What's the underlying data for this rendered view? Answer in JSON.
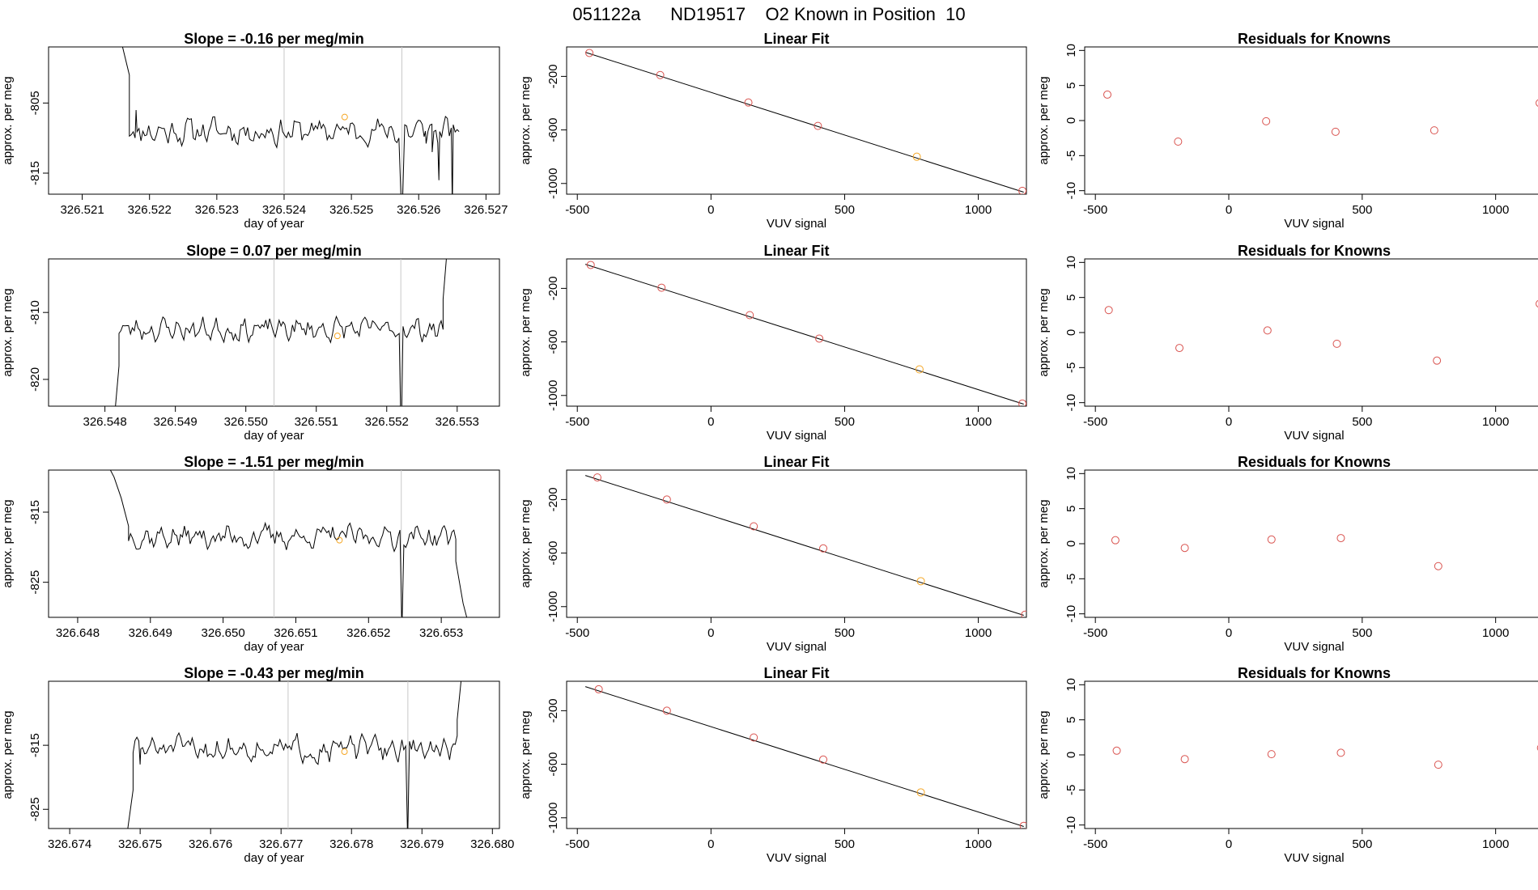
{
  "figure_title": "051122a      ND19517    O2 Known in Position  10",
  "chart_data": [
    {
      "type": "line",
      "title": "Slope =  -0.16  per meg/min",
      "xlabel": "day of year",
      "ylabel": "approx. per meg",
      "xlim": [
        326.5205,
        326.5272
      ],
      "ylim": [
        -818,
        -797
      ],
      "xticks": [
        326.521,
        326.522,
        326.523,
        326.524,
        326.525,
        326.526,
        326.527
      ],
      "xtick_labels": [
        "326.521",
        "326.522",
        "326.523",
        "326.524",
        "326.525",
        "326.526",
        "326.527"
      ],
      "yticks": [
        -805,
        -815
      ],
      "ytick_labels": [
        "-805",
        "-815"
      ],
      "vlines": [
        326.524,
        326.52575
      ],
      "x_start": 326.5217,
      "x_end": 326.5266,
      "base": -809,
      "amp": 2.5,
      "seed": 11,
      "head": [
        [
          326.5214,
          -790
        ],
        [
          326.5216,
          -797
        ],
        [
          326.5217,
          -801
        ],
        [
          326.5218,
          -806
        ]
      ],
      "tail": [
        [
          326.5261,
          -809
        ],
        [
          326.5262,
          -812
        ],
        [
          326.5263,
          -816
        ],
        [
          326.5265,
          -820
        ]
      ],
      "dips": [
        [
          326.52575,
          -818
        ]
      ],
      "marker": {
        "x": 326.5249,
        "y": -807,
        "color": "#f5a623"
      }
    },
    {
      "type": "scatter",
      "title": "Linear Fit",
      "xlabel": "VUV signal",
      "ylabel": "approx. per meg",
      "xlim": [
        -540,
        1180
      ],
      "ylim": [
        -1080,
        20
      ],
      "xticks": [
        -500,
        0,
        500,
        1000
      ],
      "xtick_labels": [
        "-500",
        "0",
        "500",
        "1000"
      ],
      "yticks": [
        -200,
        -600,
        -1000
      ],
      "ytick_labels": [
        "-200",
        "-600",
        "-1000"
      ],
      "fit_line": [
        [
          -470,
          -20
        ],
        [
          1170,
          -1065
        ]
      ],
      "points": [
        [
          -455,
          -25
        ],
        [
          -190,
          -190
        ],
        [
          140,
          -395
        ],
        [
          400,
          -570
        ],
        [
          770,
          -800
        ],
        [
          1165,
          -1055
        ]
      ],
      "point_colors": [
        "#d9534f",
        "#d9534f",
        "#d9534f",
        "#d9534f",
        "#f5a623",
        "#d9534f"
      ]
    },
    {
      "type": "scatter",
      "title": "Residuals for Knowns",
      "xlabel": "VUV signal",
      "ylabel": "approx. per meg",
      "xlim": [
        -540,
        1180
      ],
      "ylim": [
        -10.5,
        10.5
      ],
      "xticks": [
        -500,
        0,
        500,
        1000
      ],
      "xtick_labels": [
        "-500",
        "0",
        "500",
        "1000"
      ],
      "yticks": [
        10,
        5,
        0,
        -5,
        -10
      ],
      "ytick_labels": [
        "10",
        "5",
        "0",
        "-5",
        "-10"
      ],
      "points": [
        [
          -455,
          3.7
        ],
        [
          -190,
          -3
        ],
        [
          140,
          -0.1
        ],
        [
          400,
          -1.6
        ],
        [
          770,
          -1.4
        ],
        [
          1165,
          2.5
        ]
      ],
      "point_colors": [
        "#d9534f",
        "#d9534f",
        "#d9534f",
        "#d9534f",
        "#d9534f",
        "#d9534f"
      ]
    },
    {
      "type": "line",
      "title": "Slope =  0.07  per meg/min",
      "xlabel": "day of year",
      "ylabel": "approx. per meg",
      "xlim": [
        326.5472,
        326.5536
      ],
      "ylim": [
        -824,
        -802
      ],
      "xticks": [
        326.548,
        326.549,
        326.55,
        326.551,
        326.552,
        326.553
      ],
      "xtick_labels": [
        "326.548",
        "326.549",
        "326.550",
        "326.551",
        "326.552",
        "326.553"
      ],
      "yticks": [
        -810,
        -820
      ],
      "ytick_labels": [
        "-810",
        "-820"
      ],
      "vlines": [
        326.5504,
        326.5522
      ],
      "x_start": 326.5482,
      "x_end": 326.5528,
      "base": -812.5,
      "amp": 2.2,
      "seed": 23,
      "head": [
        [
          326.5481,
          -830
        ],
        [
          326.5482,
          -818
        ]
      ],
      "tail": [
        [
          326.5528,
          -808
        ],
        [
          326.5529,
          -795
        ]
      ],
      "dips": [
        [
          326.5522,
          -830
        ]
      ],
      "marker": {
        "x": 326.5513,
        "y": -813.5,
        "color": "#f5a623"
      }
    },
    {
      "type": "scatter",
      "title": "Linear Fit",
      "xlabel": "VUV signal",
      "ylabel": "approx. per meg",
      "xlim": [
        -540,
        1180
      ],
      "ylim": [
        -1080,
        20
      ],
      "xticks": [
        -500,
        0,
        500,
        1000
      ],
      "xtick_labels": [
        "-500",
        "0",
        "500",
        "1000"
      ],
      "yticks": [
        -200,
        -600,
        -1000
      ],
      "ytick_labels": [
        "-200",
        "-600",
        "-1000"
      ],
      "fit_line": [
        [
          -470,
          -20
        ],
        [
          1170,
          -1065
        ]
      ],
      "points": [
        [
          -450,
          -25
        ],
        [
          -185,
          -195
        ],
        [
          145,
          -400
        ],
        [
          405,
          -575
        ],
        [
          780,
          -805
        ],
        [
          1165,
          -1060
        ]
      ],
      "point_colors": [
        "#d9534f",
        "#d9534f",
        "#d9534f",
        "#d9534f",
        "#f5a623",
        "#d9534f"
      ]
    },
    {
      "type": "scatter",
      "title": "Residuals for Knowns",
      "xlabel": "VUV signal",
      "ylabel": "approx. per meg",
      "xlim": [
        -540,
        1180
      ],
      "ylim": [
        -10.5,
        10.5
      ],
      "xticks": [
        -500,
        0,
        500,
        1000
      ],
      "xtick_labels": [
        "-500",
        "0",
        "500",
        "1000"
      ],
      "yticks": [
        10,
        5,
        0,
        -5,
        -10
      ],
      "ytick_labels": [
        "10",
        "5",
        "0",
        "-5",
        "-10"
      ],
      "points": [
        [
          -450,
          3.2
        ],
        [
          -185,
          -2.2
        ],
        [
          145,
          0.3
        ],
        [
          405,
          -1.6
        ],
        [
          780,
          -4
        ],
        [
          1165,
          4.1
        ]
      ],
      "point_colors": [
        "#d9534f",
        "#d9534f",
        "#d9534f",
        "#d9534f",
        "#d9534f",
        "#d9534f"
      ]
    },
    {
      "type": "line",
      "title": "Slope =  -1.51  per meg/min",
      "xlabel": "day of year",
      "ylabel": "approx. per meg",
      "xlim": [
        326.6476,
        326.6538
      ],
      "ylim": [
        -830,
        -809
      ],
      "xticks": [
        326.648,
        326.649,
        326.65,
        326.651,
        326.652,
        326.653
      ],
      "xtick_labels": [
        "326.648",
        "326.649",
        "326.650",
        "326.651",
        "326.652",
        "326.653"
      ],
      "yticks": [
        -815,
        -825
      ],
      "ytick_labels": [
        "-815",
        "-825"
      ],
      "vlines": [
        326.6507,
        326.65245
      ],
      "x_start": 326.6487,
      "x_end": 326.6532,
      "base": -818.5,
      "amp": 2.2,
      "seed": 37,
      "head": [
        [
          326.6484,
          -808
        ],
        [
          326.6485,
          -810
        ],
        [
          326.6486,
          -813
        ],
        [
          326.6487,
          -817
        ]
      ],
      "tail": [
        [
          326.6532,
          -822
        ],
        [
          326.6533,
          -828
        ],
        [
          326.6534,
          -832
        ]
      ],
      "dips": [
        [
          326.65245,
          -832
        ]
      ],
      "marker": {
        "x": 326.6516,
        "y": -819,
        "color": "#f5a623"
      }
    },
    {
      "type": "scatter",
      "title": "Linear Fit",
      "xlabel": "VUV signal",
      "ylabel": "approx. per meg",
      "xlim": [
        -540,
        1180
      ],
      "ylim": [
        -1080,
        20
      ],
      "xticks": [
        -500,
        0,
        500,
        1000
      ],
      "xtick_labels": [
        "-500",
        "0",
        "500",
        "1000"
      ],
      "yticks": [
        -200,
        -600,
        -1000
      ],
      "ytick_labels": [
        "-200",
        "-600",
        "-1000"
      ],
      "fit_line": [
        [
          -470,
          -20
        ],
        [
          1170,
          -1065
        ]
      ],
      "points": [
        [
          -425,
          -35
        ],
        [
          -165,
          -200
        ],
        [
          160,
          -400
        ],
        [
          420,
          -565
        ],
        [
          785,
          -810
        ],
        [
          1175,
          -1060
        ]
      ],
      "point_colors": [
        "#d9534f",
        "#d9534f",
        "#d9534f",
        "#d9534f",
        "#f5a623",
        "#d9534f"
      ]
    },
    {
      "type": "scatter",
      "title": "Residuals for Knowns",
      "xlabel": "VUV signal",
      "ylabel": "approx. per meg",
      "xlim": [
        -540,
        1180
      ],
      "ylim": [
        -10.5,
        10.5
      ],
      "xticks": [
        -500,
        0,
        500,
        1000
      ],
      "xtick_labels": [
        "-500",
        "0",
        "500",
        "1000"
      ],
      "yticks": [
        10,
        5,
        0,
        -5,
        -10
      ],
      "ytick_labels": [
        "10",
        "5",
        "0",
        "-5",
        "-10"
      ],
      "points": [
        [
          -425,
          0.5
        ],
        [
          -165,
          -0.6
        ],
        [
          160,
          0.6
        ],
        [
          420,
          0.8
        ],
        [
          785,
          -3.2
        ],
        [
          1175,
          1.9
        ]
      ],
      "point_colors": [
        "#d9534f",
        "#d9534f",
        "#d9534f",
        "#d9534f",
        "#d9534f",
        "#d9534f"
      ]
    },
    {
      "type": "line",
      "title": "Slope =  -0.43  per meg/min",
      "xlabel": "day of year",
      "ylabel": "approx. per meg",
      "xlim": [
        326.6737,
        326.6801
      ],
      "ylim": [
        -828,
        -805
      ],
      "xticks": [
        326.674,
        326.675,
        326.676,
        326.677,
        326.678,
        326.679,
        326.68
      ],
      "xtick_labels": [
        "326.674",
        "326.675",
        "326.676",
        "326.677",
        "326.678",
        "326.679",
        "326.680"
      ],
      "yticks": [
        -815,
        -825
      ],
      "ytick_labels": [
        "-815",
        "-825"
      ],
      "vlines": [
        326.6771,
        326.6788
      ],
      "x_start": 326.6749,
      "x_end": 326.6795,
      "base": -815.5,
      "amp": 2.5,
      "seed": 51,
      "head": [
        [
          326.6748,
          -830
        ],
        [
          326.6749,
          -822
        ],
        [
          326.675,
          -818
        ]
      ],
      "tail": [
        [
          326.6795,
          -811
        ],
        [
          326.6796,
          -800
        ]
      ],
      "dips": [
        [
          326.6788,
          -830
        ]
      ],
      "marker": {
        "x": 326.6779,
        "y": -816,
        "color": "#f5a623"
      }
    },
    {
      "type": "scatter",
      "title": "Linear Fit",
      "xlabel": "VUV signal",
      "ylabel": "approx. per meg",
      "xlim": [
        -540,
        1180
      ],
      "ylim": [
        -1080,
        20
      ],
      "xticks": [
        -500,
        0,
        500,
        1000
      ],
      "xtick_labels": [
        "-500",
        "0",
        "500",
        "1000"
      ],
      "yticks": [
        -200,
        -600,
        -1000
      ],
      "ytick_labels": [
        "-200",
        "-600",
        "-1000"
      ],
      "fit_line": [
        [
          -470,
          -20
        ],
        [
          1170,
          -1065
        ]
      ],
      "points": [
        [
          -420,
          -40
        ],
        [
          -165,
          -200
        ],
        [
          160,
          -400
        ],
        [
          420,
          -565
        ],
        [
          785,
          -810
        ],
        [
          1170,
          -1060
        ]
      ],
      "point_colors": [
        "#d9534f",
        "#d9534f",
        "#d9534f",
        "#d9534f",
        "#f5a623",
        "#d9534f"
      ]
    },
    {
      "type": "scatter",
      "title": "Residuals for Knowns",
      "xlabel": "VUV signal",
      "ylabel": "approx. per meg",
      "xlim": [
        -540,
        1180
      ],
      "ylim": [
        -10.5,
        10.5
      ],
      "xticks": [
        -500,
        0,
        500,
        1000
      ],
      "xtick_labels": [
        "-500",
        "0",
        "500",
        "1000"
      ],
      "yticks": [
        10,
        5,
        0,
        -5,
        -10
      ],
      "ytick_labels": [
        "10",
        "5",
        "0",
        "-5",
        "-10"
      ],
      "points": [
        [
          -420,
          0.6
        ],
        [
          -165,
          -0.6
        ],
        [
          160,
          0.1
        ],
        [
          420,
          0.3
        ],
        [
          785,
          -1.4
        ],
        [
          1170,
          1
        ]
      ],
      "point_colors": [
        "#d9534f",
        "#d9534f",
        "#d9534f",
        "#d9534f",
        "#d9534f",
        "#d9534f"
      ]
    }
  ]
}
